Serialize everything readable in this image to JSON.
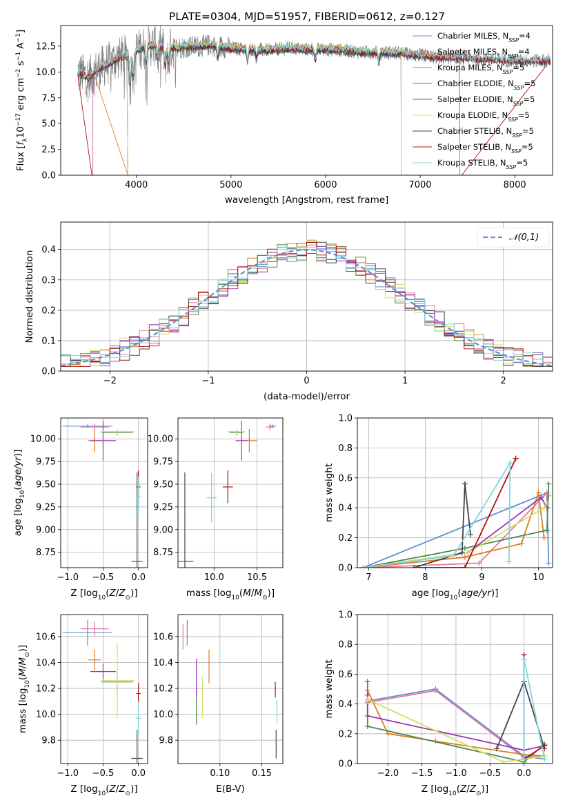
{
  "figure_title": "PLATE=0304, MJD=51957, FIBERID=0612, z=0.127",
  "colors": {
    "chabrier_miles": "#5f8fd8",
    "salpeter_miles": "#e6799f",
    "kroupa_miles": "#e07b22",
    "chabrier_elodie": "#4f8a4f",
    "salpeter_elodie": "#9b35b5",
    "kroupa_elodie": "#cfe15a",
    "chabrier_stelib": "#444444",
    "salpeter_stelib": "#b01010",
    "kroupa_stelib": "#7fd6dc",
    "data": "#808080",
    "grid": "#b0b0b0",
    "normal_curve": "#5f8fd8"
  },
  "chart_data": [
    {
      "id": "spectrum",
      "type": "line",
      "title": "PLATE=0304, MJD=51957, FIBERID=0612, z=0.127",
      "xlabel": "wavelength [Angstrom, rest frame]",
      "ylabel": "Flux [f_λ 10^-17 erg cm^-2 s^-1 A^-1]",
      "xlim": [
        3200,
        8400
      ],
      "ylim": [
        0,
        14.5
      ],
      "xticks": [
        "4000",
        "5000",
        "6000",
        "7000",
        "8000"
      ],
      "yticks": [
        "0.0",
        "2.5",
        "5.0",
        "7.5",
        "10.0",
        "12.5"
      ],
      "legend_position": "right",
      "legend": [
        {
          "label": "Chabrier MILES, N",
          "sub": "SSP",
          "tail": "=4"
        },
        {
          "label": "Salpeter MILES, N",
          "sub": "SSP",
          "tail": "=4"
        },
        {
          "label": "Kroupa MILES, N",
          "sub": "SSP",
          "tail": "=5"
        },
        {
          "label": "Chabrier ELODIE, N",
          "sub": "SSP",
          "tail": "=5"
        },
        {
          "label": "Salpeter ELODIE, N",
          "sub": "SSP",
          "tail": "=5"
        },
        {
          "label": "Kroupa ELODIE, N",
          "sub": "SSP",
          "tail": "=5"
        },
        {
          "label": "Chabrier STELIB, N",
          "sub": "SSP",
          "tail": "=5"
        },
        {
          "label": "Salpeter STELIB, N",
          "sub": "SSP",
          "tail": "=5"
        },
        {
          "label": "Kroupa STELIB, N",
          "sub": "SSP",
          "tail": "=5"
        }
      ],
      "spectrum_anchor_points": {
        "wavelength": [
          3380,
          3500,
          3600,
          3700,
          3800,
          3900,
          4000,
          4100,
          4200,
          4300,
          4500,
          4800,
          5000,
          5200,
          5400,
          5600,
          5800,
          6000,
          6200,
          6400,
          6600,
          6800,
          7000,
          7200,
          7400,
          7600,
          7800,
          8000,
          8200,
          8380
        ],
        "flux": [
          10.0,
          9.5,
          10.3,
          10.8,
          11.3,
          11.6,
          12.1,
          12.5,
          12.6,
          12.3,
          12.4,
          12.6,
          12.3,
          12.2,
          12.1,
          12.3,
          12.2,
          12.2,
          12.1,
          11.9,
          11.9,
          11.8,
          11.6,
          11.4,
          11.4,
          11.3,
          11.2,
          11.1,
          11.1,
          11.1
        ]
      }
    },
    {
      "id": "residuals",
      "type": "step-histogram",
      "xlabel": "(data-model)/error",
      "ylabel": "Normed distribution",
      "xlim": [
        -2.5,
        2.5
      ],
      "ylim": [
        0,
        0.49
      ],
      "xticks": [
        "−2",
        "−1",
        "0",
        "1",
        "2"
      ],
      "yticks": [
        "0.0",
        "0.1",
        "0.2",
        "0.3",
        "0.4"
      ],
      "bin_width": 0.1,
      "reference_curve": {
        "name": "𝒩(0,1)",
        "mean": 0,
        "sigma": 1
      },
      "legend_position": "top-right"
    },
    {
      "id": "age_vs_Z",
      "type": "errorbar",
      "xlabel": "Z [log10(Z/Z⊙)]",
      "ylabel": "age  [log10(age/yr)]",
      "xlim": [
        -1.1,
        0.13
      ],
      "ylim": [
        8.58,
        10.23
      ],
      "xticks": [
        "−1.0",
        "−0.5",
        "0.0"
      ],
      "yticks": [
        "8.75",
        "9.00",
        "9.25",
        "9.50",
        "9.75",
        "10.00"
      ],
      "points": [
        {
          "model": "chabrier_miles",
          "x": -0.72,
          "xerr": 0.35,
          "y": 10.14,
          "yerr": 0.02
        },
        {
          "model": "salpeter_miles",
          "x": -0.62,
          "xerr": 0.2,
          "y": 10.13,
          "yerr": 0.04
        },
        {
          "model": "kroupa_miles",
          "x": -0.62,
          "xerr": 0.09,
          "y": 9.98,
          "yerr": 0.13
        },
        {
          "model": "chabrier_elodie",
          "x": -0.3,
          "xerr": 0.22,
          "y": 10.07,
          "yerr": 0.03
        },
        {
          "model": "salpeter_elodie",
          "x": -0.5,
          "xerr": 0.18,
          "y": 9.98,
          "yerr": 0.22
        },
        {
          "model": "kroupa_elodie",
          "x": -0.3,
          "xerr": 0.24,
          "y": 10.08,
          "yerr": 0.03
        },
        {
          "model": "chabrier_stelib",
          "x": -0.02,
          "xerr": 0.08,
          "y": 8.65,
          "yerr": 0.98
        },
        {
          "model": "salpeter_stelib",
          "x": 0.0,
          "xerr": 0.03,
          "y": 9.47,
          "yerr": 0.18
        },
        {
          "model": "kroupa_stelib",
          "x": 0.0,
          "xerr": 0.04,
          "y": 9.36,
          "yerr": 0.22
        }
      ]
    },
    {
      "id": "age_vs_mass",
      "type": "errorbar",
      "xlabel": "mass [log10(M/M⊙)]",
      "ylabel": "",
      "xlim": [
        9.58,
        10.8
      ],
      "ylim": [
        8.58,
        10.23
      ],
      "xticks": [
        "10.0",
        "10.5"
      ],
      "yticks": [
        "8.75",
        "9.00",
        "9.25",
        "9.50",
        "9.75",
        "10.00"
      ],
      "points": [
        {
          "model": "chabrier_miles",
          "x": 10.68,
          "xerr": 0.04,
          "y": 10.14,
          "yerr": 0.02
        },
        {
          "model": "salpeter_miles",
          "x": 10.65,
          "xerr": 0.05,
          "y": 10.13,
          "yerr": 0.04
        },
        {
          "model": "kroupa_miles",
          "x": 10.41,
          "xerr": 0.09,
          "y": 9.98,
          "yerr": 0.13
        },
        {
          "model": "chabrier_elodie",
          "x": 10.26,
          "xerr": 0.08,
          "y": 10.07,
          "yerr": 0.03
        },
        {
          "model": "salpeter_elodie",
          "x": 10.32,
          "xerr": 0.07,
          "y": 9.98,
          "yerr": 0.22
        },
        {
          "model": "kroupa_elodie",
          "x": 10.26,
          "xerr": 0.1,
          "y": 10.08,
          "yerr": 0.03
        },
        {
          "model": "chabrier_stelib",
          "x": 9.66,
          "xerr": 0.1,
          "y": 8.65,
          "yerr": 0.98
        },
        {
          "model": "salpeter_stelib",
          "x": 10.16,
          "xerr": 0.06,
          "y": 9.47,
          "yerr": 0.18
        },
        {
          "model": "kroupa_stelib",
          "x": 9.97,
          "xerr": 0.06,
          "y": 9.35,
          "yerr": 0.27
        }
      ]
    },
    {
      "id": "weight_vs_age",
      "type": "line",
      "xlabel": "age  [log10(age/yr)]",
      "ylabel": "mass weight",
      "xlim": [
        6.8,
        10.25
      ],
      "ylim": [
        0,
        1.0
      ],
      "xticks": [
        "7",
        "8",
        "9",
        "10"
      ],
      "yticks": [
        "0.0",
        "0.2",
        "0.4",
        "0.6",
        "0.8",
        "1.0"
      ],
      "series": [
        {
          "model": "chabrier_miles",
          "x": [
            6.9,
            10.15,
            10.18
          ],
          "y": [
            0.0,
            0.5,
            0.03
          ]
        },
        {
          "model": "salpeter_miles",
          "x": [
            6.9,
            8.95,
            10.15,
            10.18
          ],
          "y": [
            0.0,
            0.03,
            0.5,
            0.48
          ]
        },
        {
          "model": "kroupa_miles",
          "x": [
            6.9,
            8.7,
            9.7,
            10.0,
            10.1
          ],
          "y": [
            0.0,
            0.07,
            0.16,
            0.5,
            0.2
          ]
        },
        {
          "model": "chabrier_elodie",
          "x": [
            6.9,
            8.7,
            10.15,
            10.18
          ],
          "y": [
            0.0,
            0.13,
            0.25,
            0.56
          ]
        },
        {
          "model": "salpeter_elodie",
          "x": [
            6.9,
            8.75,
            10.05,
            10.15
          ],
          "y": [
            0.0,
            0.1,
            0.47,
            0.4
          ]
        },
        {
          "model": "kroupa_elodie",
          "x": [
            6.9,
            8.75,
            10.1,
            10.15
          ],
          "y": [
            0.0,
            0.1,
            0.4,
            0.43
          ]
        },
        {
          "model": "chabrier_stelib",
          "x": [
            7.8,
            8.65,
            8.7,
            8.8
          ],
          "y": [
            0.0,
            0.1,
            0.56,
            0.22
          ]
        },
        {
          "model": "salpeter_stelib",
          "x": [
            7.9,
            8.7,
            9.6
          ],
          "y": [
            0.0,
            0.0,
            0.73
          ]
        },
        {
          "model": "kroupa_stelib",
          "x": [
            6.9,
            8.5,
            9.5,
            9.48
          ],
          "y": [
            0.0,
            0.08,
            0.7,
            0.04
          ]
        }
      ]
    },
    {
      "id": "mass_vs_Z",
      "type": "errorbar",
      "xlabel": "Z [log10(Z/Z⊙)]",
      "ylabel": "mass [log10(M/M⊙)]",
      "xlim": [
        -1.1,
        0.13
      ],
      "ylim": [
        9.62,
        10.77
      ],
      "xticks": [
        "−1.0",
        "−0.5",
        "0.0"
      ],
      "yticks": [
        "9.8",
        "10.0",
        "10.2",
        "10.4",
        "10.6"
      ],
      "points": [
        {
          "model": "chabrier_miles",
          "x": -0.72,
          "xerr": 0.35,
          "y": 10.63,
          "yerr": 0.1
        },
        {
          "model": "salpeter_miles",
          "x": -0.62,
          "xerr": 0.2,
          "y": 10.66,
          "yerr": 0.06
        },
        {
          "model": "kroupa_miles",
          "x": -0.62,
          "xerr": 0.09,
          "y": 10.42,
          "yerr": 0.08
        },
        {
          "model": "chabrier_elodie",
          "x": -0.3,
          "xerr": 0.22,
          "y": 10.25,
          "yerr": 0.08
        },
        {
          "model": "salpeter_elodie",
          "x": -0.5,
          "xerr": 0.18,
          "y": 10.33,
          "yerr": 0.06
        },
        {
          "model": "kroupa_elodie",
          "x": -0.3,
          "xerr": 0.24,
          "y": 10.26,
          "yerr": 0.29
        },
        {
          "model": "chabrier_stelib",
          "x": -0.02,
          "xerr": 0.08,
          "y": 9.66,
          "yerr": 0.22
        },
        {
          "model": "salpeter_stelib",
          "x": 0.0,
          "xerr": 0.03,
          "y": 10.16,
          "yerr": 0.08
        },
        {
          "model": "kroupa_stelib",
          "x": 0.0,
          "xerr": 0.04,
          "y": 9.97,
          "yerr": 0.13
        }
      ]
    },
    {
      "id": "mass_vs_ebv",
      "type": "errorbar",
      "xlabel": "E(B-V)",
      "ylabel": "",
      "xlim": [
        0.05,
        0.175
      ],
      "ylim": [
        9.62,
        10.77
      ],
      "xticks": [
        "0.10",
        "0.15"
      ],
      "yticks": [
        "9.8",
        "10.0",
        "10.2",
        "10.4",
        "10.6"
      ],
      "points": [
        {
          "model": "chabrier_miles",
          "x": 0.061,
          "xerr": 0.0,
          "y": 10.63,
          "yerr": 0.1
        },
        {
          "model": "salpeter_miles",
          "x": 0.056,
          "xerr": 0.0,
          "y": 10.6,
          "yerr": 0.1
        },
        {
          "model": "kroupa_miles",
          "x": 0.087,
          "xerr": 0.0,
          "y": 10.37,
          "yerr": 0.13
        },
        {
          "model": "chabrier_elodie",
          "x": 0.072,
          "xerr": 0.0,
          "y": 10.05,
          "yerr": 0.13
        },
        {
          "model": "salpeter_elodie",
          "x": 0.072,
          "xerr": 0.0,
          "y": 10.28,
          "yerr": 0.15
        },
        {
          "model": "kroupa_elodie",
          "x": 0.079,
          "xerr": 0.0,
          "y": 10.13,
          "yerr": 0.16
        },
        {
          "model": "chabrier_stelib",
          "x": 0.167,
          "xerr": 0.0,
          "y": 9.77,
          "yerr": 0.11
        },
        {
          "model": "salpeter_stelib",
          "x": 0.166,
          "xerr": 0.0,
          "y": 10.19,
          "yerr": 0.06
        },
        {
          "model": "kroupa_stelib",
          "x": 0.168,
          "xerr": 0.0,
          "y": 10.02,
          "yerr": 0.09
        }
      ]
    },
    {
      "id": "weight_vs_Z",
      "type": "line",
      "xlabel": "Z [log10(Z/Z⊙)]",
      "ylabel": "mass weight",
      "xlim": [
        -2.45,
        0.42
      ],
      "ylim": [
        0,
        1.0
      ],
      "xticks": [
        "−2.0",
        "−1.5",
        "−1.0",
        "−0.5",
        "0.0"
      ],
      "yticks": [
        "0.0",
        "0.2",
        "0.4",
        "0.6",
        "0.8",
        "1.0"
      ],
      "series": [
        {
          "model": "chabrier_miles",
          "x": [
            -2.3,
            -1.3,
            0.0,
            0.3
          ],
          "y": [
            0.42,
            0.5,
            0.05,
            0.03
          ]
        },
        {
          "model": "salpeter_miles",
          "x": [
            -2.3,
            -1.3,
            0.0,
            0.3
          ],
          "y": [
            0.41,
            0.49,
            0.04,
            0.05
          ]
        },
        {
          "model": "kroupa_miles",
          "x": [
            -2.3,
            -2.0,
            -1.3,
            0.0,
            0.3
          ],
          "y": [
            0.49,
            0.2,
            0.15,
            0.06,
            0.05
          ]
        },
        {
          "model": "chabrier_elodie",
          "x": [
            -2.3,
            -2.3,
            0.0,
            0.3
          ],
          "y": [
            0.55,
            0.25,
            0.01,
            0.13
          ]
        },
        {
          "model": "salpeter_elodie",
          "x": [
            -2.3,
            -2.3,
            0.0,
            0.3
          ],
          "y": [
            0.46,
            0.32,
            0.09,
            0.12
          ]
        },
        {
          "model": "kroupa_elodie",
          "x": [
            -2.3,
            -2.3,
            -0.3,
            0.3
          ],
          "y": [
            0.42,
            0.43,
            0.01,
            0.05
          ]
        },
        {
          "model": "chabrier_stelib",
          "x": [
            -0.4,
            0.0,
            0.3
          ],
          "y": [
            0.1,
            0.55,
            0.1
          ]
        },
        {
          "model": "salpeter_stelib",
          "x": [
            0.0,
            0.0,
            0.3
          ],
          "y": [
            0.73,
            0.03,
            0.12
          ]
        },
        {
          "model": "kroupa_stelib",
          "x": [
            0.0,
            0.0,
            0.3
          ],
          "y": [
            0.03,
            0.7,
            0.03
          ]
        }
      ]
    }
  ]
}
